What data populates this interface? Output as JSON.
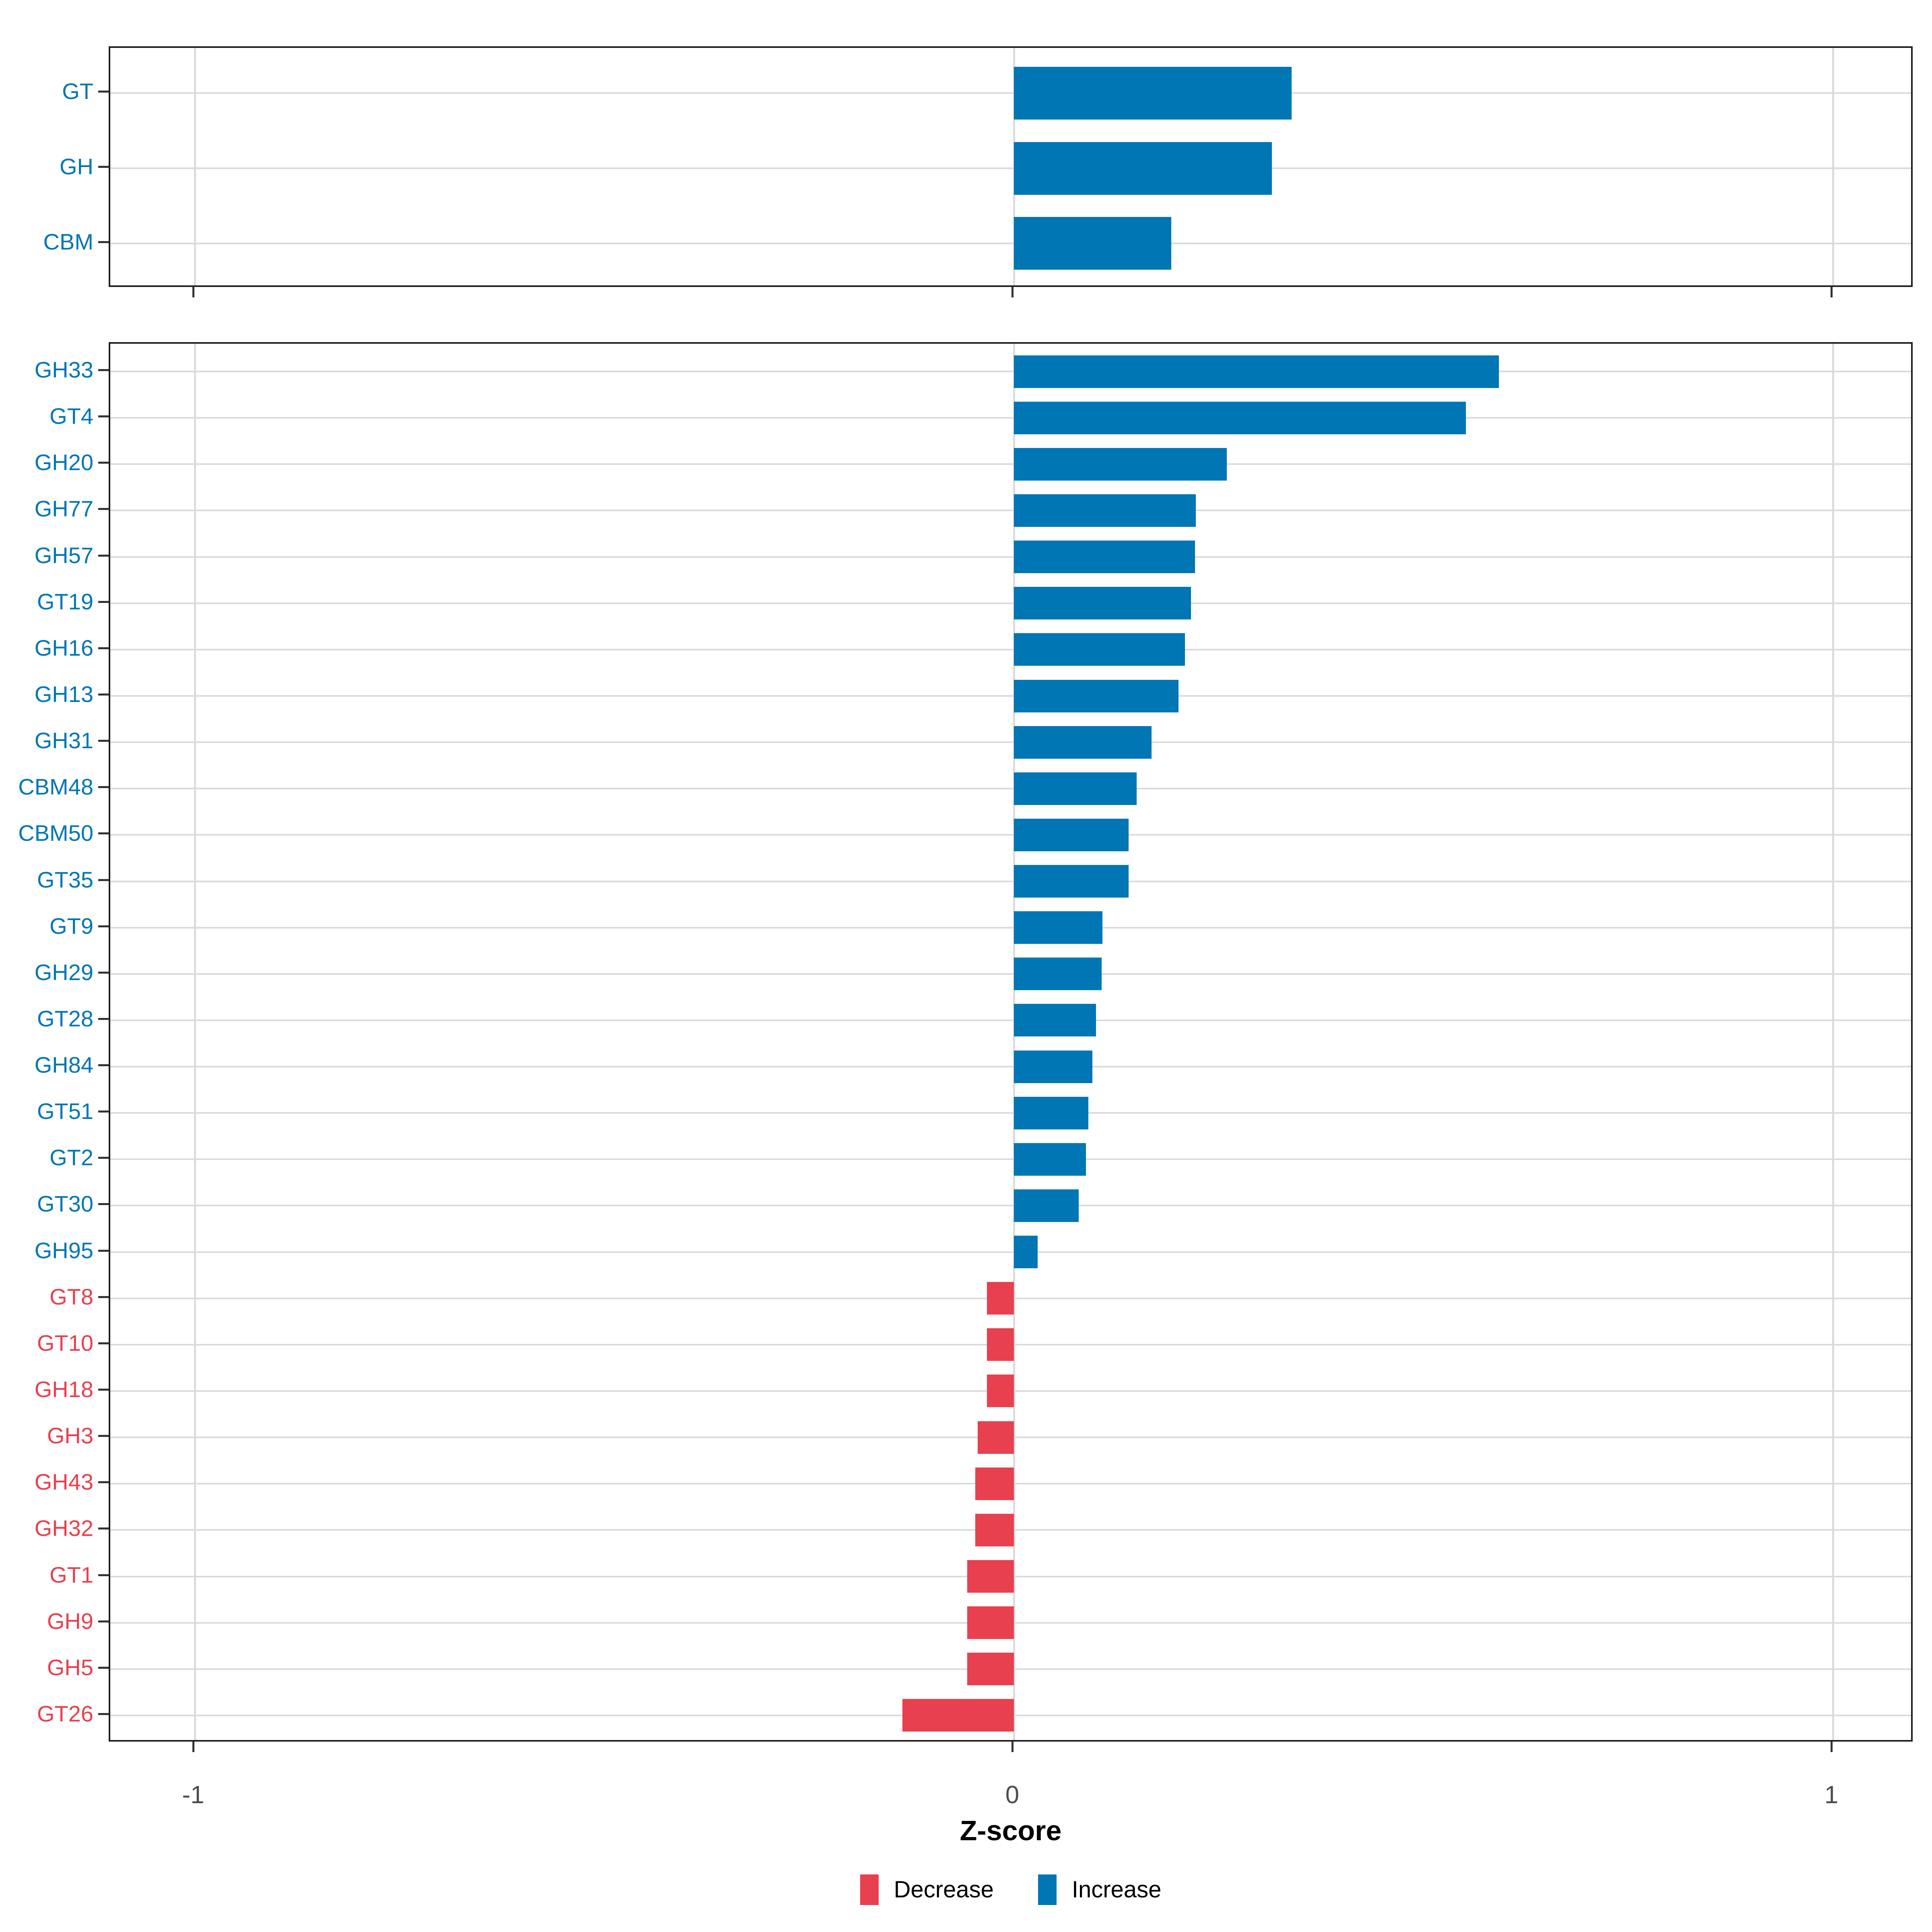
{
  "figure": {
    "background": "#ffffff"
  },
  "axis_x": {
    "title": "Z-score",
    "ticks": [
      {
        "label": "-1",
        "value": -1
      },
      {
        "label": "0",
        "value": 0
      },
      {
        "label": "1",
        "value": 1
      }
    ],
    "range": [
      -1.1,
      1.1
    ]
  },
  "legend": {
    "items": [
      {
        "label": "Decrease",
        "color": "#e8404e",
        "key": "decrease"
      },
      {
        "label": "Increase",
        "color": "#0076b4",
        "key": "increase"
      }
    ]
  },
  "colors": {
    "increase": "#0076b4",
    "decrease": "#e8404e",
    "gridline": "#dbdbdb",
    "panel_border": "#1f1f1f",
    "axis_text": "#4d4d4d",
    "tick_mark": "#333333",
    "axis_title": "#000000"
  },
  "chart_data": [
    {
      "id": "top_panel",
      "type": "bar",
      "orientation": "horizontal",
      "xlabel": "Z-score",
      "xlim": [
        -1.1,
        1.1
      ],
      "grid": true,
      "categories": [
        "GT",
        "GH",
        "CBM"
      ],
      "values": [
        0.339,
        0.315,
        0.192
      ],
      "directions": [
        "increase",
        "increase",
        "increase"
      ]
    },
    {
      "id": "bottom_panel",
      "type": "bar",
      "orientation": "horizontal",
      "xlabel": "Z-score",
      "xlim": [
        -1.1,
        1.1
      ],
      "grid": true,
      "legend_position": "bottom",
      "categories": [
        "GH33",
        "GT4",
        "GH20",
        "GH77",
        "GH57",
        "GT19",
        "GH16",
        "GH13",
        "GH31",
        "CBM48",
        "CBM50",
        "GT35",
        "GT9",
        "GH29",
        "GT28",
        "GH84",
        "GT51",
        "GT2",
        "GT30",
        "GH95",
        "GT8",
        "GT10",
        "GH18",
        "GH3",
        "GH43",
        "GH32",
        "GT1",
        "GH9",
        "GH5",
        "GT26"
      ],
      "values": [
        0.592,
        0.552,
        0.26,
        0.222,
        0.221,
        0.216,
        0.209,
        0.201,
        0.168,
        0.15,
        0.14,
        0.14,
        0.108,
        0.107,
        0.1,
        0.096,
        0.091,
        0.088,
        0.079,
        0.029,
        -0.033,
        -0.033,
        -0.033,
        -0.044,
        -0.047,
        -0.047,
        -0.057,
        -0.057,
        -0.057,
        -0.136
      ],
      "directions": [
        "increase",
        "increase",
        "increase",
        "increase",
        "increase",
        "increase",
        "increase",
        "increase",
        "increase",
        "increase",
        "increase",
        "increase",
        "increase",
        "increase",
        "increase",
        "increase",
        "increase",
        "increase",
        "increase",
        "increase",
        "decrease",
        "decrease",
        "decrease",
        "decrease",
        "decrease",
        "decrease",
        "decrease",
        "decrease",
        "decrease",
        "decrease"
      ]
    }
  ]
}
